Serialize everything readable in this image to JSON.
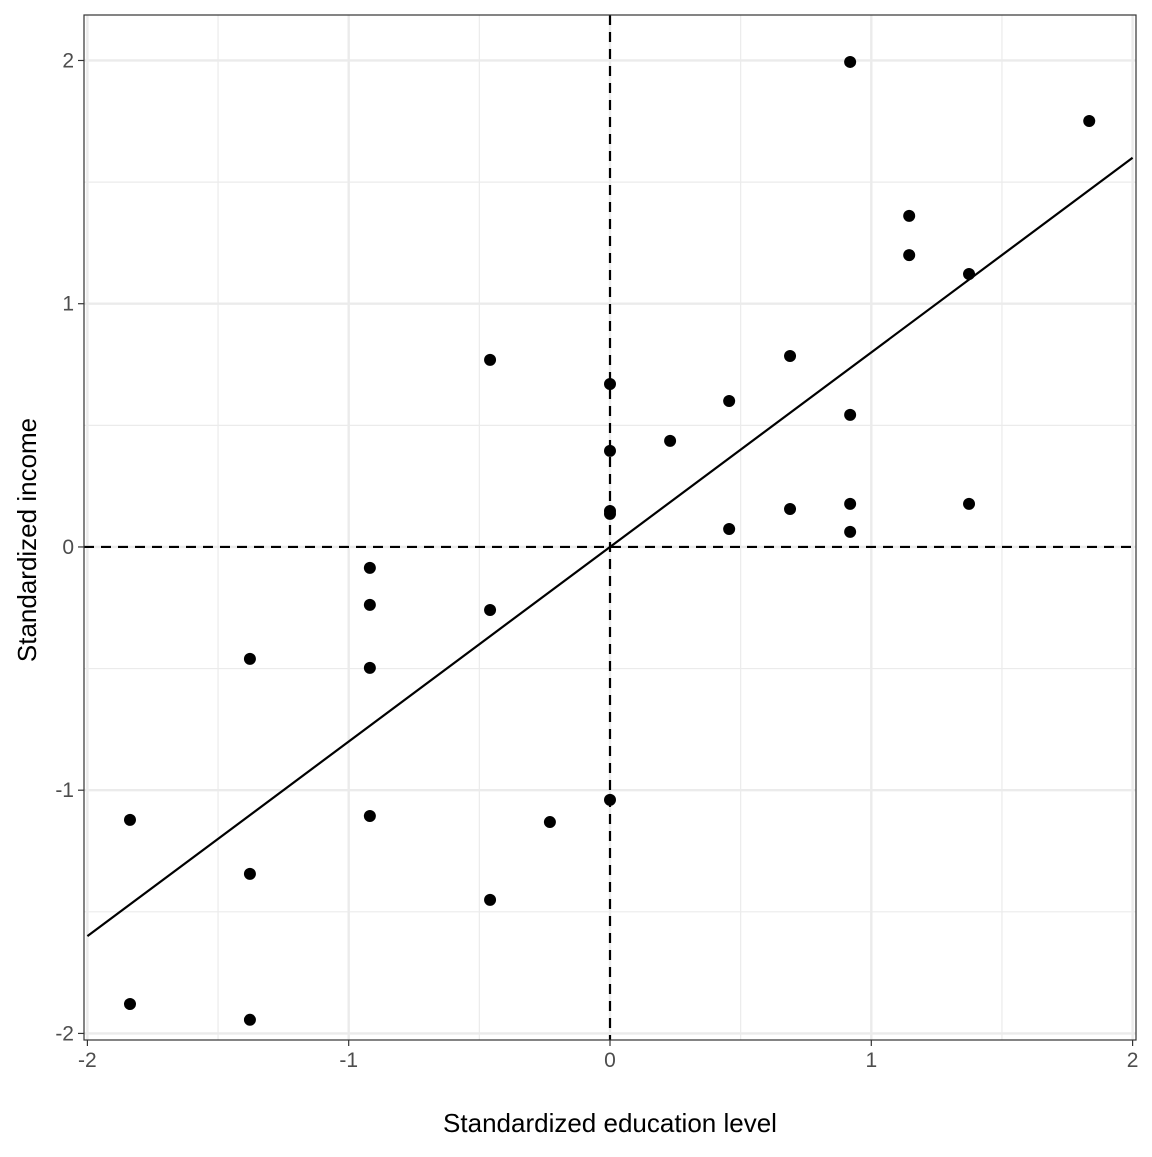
{
  "chart_data": {
    "type": "scatter",
    "title": "",
    "xlabel": "Standardized education level",
    "ylabel": "Standardized income",
    "xlim": [
      -2.013,
      2.013
    ],
    "ylim": [
      -2.027,
      2.187
    ],
    "grid": true,
    "xticks": [
      -2,
      -1,
      0,
      1,
      2
    ],
    "yticks": [
      -2,
      -1,
      0,
      1,
      2
    ],
    "xtick_labels": [
      "-2",
      "-1",
      "0",
      "1",
      "2"
    ],
    "ytick_labels": [
      "-2",
      "-1",
      "0",
      "1",
      "2"
    ],
    "reference_lines": {
      "x": 0,
      "y": 0,
      "style": "dashed"
    },
    "fit_line": {
      "x": [
        -2,
        2
      ],
      "y": [
        -1.6,
        1.6
      ]
    },
    "point_color": "#000000",
    "points": [
      {
        "x": 0.919,
        "y": 1.994
      },
      {
        "x": 1.834,
        "y": 1.751
      },
      {
        "x": 1.145,
        "y": 1.361
      },
      {
        "x": 1.145,
        "y": 1.2
      },
      {
        "x": 1.374,
        "y": 1.122
      },
      {
        "x": -0.459,
        "y": 0.769
      },
      {
        "x": 0,
        "y": 0.67
      },
      {
        "x": 0.689,
        "y": 0.785
      },
      {
        "x": 0.456,
        "y": 0.6
      },
      {
        "x": 0.919,
        "y": 0.543
      },
      {
        "x": 0.23,
        "y": 0.436
      },
      {
        "x": 0,
        "y": 0.395
      },
      {
        "x": 0,
        "y": 0.148
      },
      {
        "x": 0,
        "y": 0.136
      },
      {
        "x": 0.456,
        "y": 0.074
      },
      {
        "x": 0.689,
        "y": 0.156
      },
      {
        "x": 0.919,
        "y": 0.177
      },
      {
        "x": 1.374,
        "y": 0.177
      },
      {
        "x": 0.919,
        "y": 0.062
      },
      {
        "x": -0.919,
        "y": -0.086
      },
      {
        "x": -0.919,
        "y": -0.238
      },
      {
        "x": -0.459,
        "y": -0.259
      },
      {
        "x": -1.378,
        "y": -0.46
      },
      {
        "x": -0.919,
        "y": -0.497
      },
      {
        "x": 0,
        "y": -1.04
      },
      {
        "x": -1.837,
        "y": -1.122
      },
      {
        "x": -0.919,
        "y": -1.106
      },
      {
        "x": -0.23,
        "y": -1.131
      },
      {
        "x": -1.378,
        "y": -1.344
      },
      {
        "x": -0.459,
        "y": -1.451
      },
      {
        "x": -1.837,
        "y": -1.879
      },
      {
        "x": -1.378,
        "y": -1.944
      }
    ]
  }
}
